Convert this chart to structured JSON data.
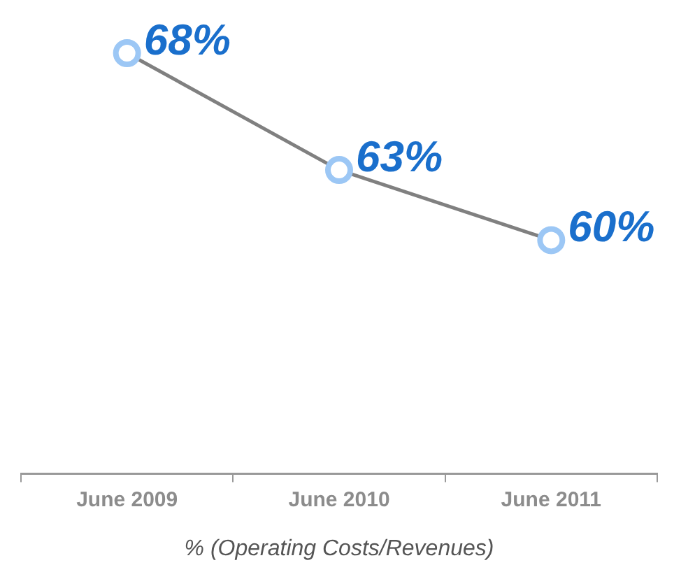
{
  "chart_data": {
    "type": "line",
    "categories": [
      "June 2009",
      "June 2010",
      "June 2011"
    ],
    "series": [
      {
        "color": "#808080",
        "values": [
          68,
          63,
          60
        ],
        "value_labels": [
          "68%",
          "63%",
          "60%"
        ]
      }
    ],
    "xlabel": "% (Operating Costs/Revenues)",
    "marker": "circle",
    "legend": false,
    "grid": false
  }
}
